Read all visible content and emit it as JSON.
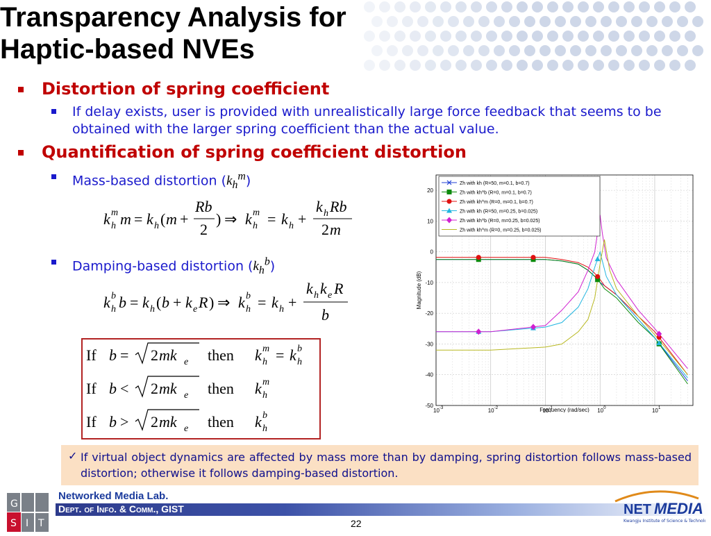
{
  "slide": {
    "title_line1": "Transparency Analysis for",
    "title_line2": "Haptic-based NVEs",
    "bullet1": "Distortion of spring coefficient",
    "bullet1_sub": "If delay exists, user is provided with unrealistically large force feedback that seems to be obtained with the larger spring coefficient than the actual value.",
    "bullet2": "Quantification of spring coefficient distortion",
    "mass_label": "Mass-based distortion (",
    "damping_label": "Damping-based distortion (",
    "note": "If virtual object dynamics are affected by mass more than by damping, spring distortion follows mass-based distortion; otherwise it follows damping-based distortion.",
    "check_symbol": "✓"
  },
  "formulas": {
    "if": "If",
    "then": "then"
  },
  "footer": {
    "lab": "Networked Media Lab.",
    "dept": "Dept. of Info. & Comm., GIST",
    "page_number": "22",
    "logo_gist": "GIST",
    "logo_netmedia": "NETMEDIA",
    "logo_netmedia_sub": "Kwangju Institute of Science & Technology"
  },
  "colors": {
    "title": "#000000",
    "bullet_level1": "#c00000",
    "bullet_level2": "#1a1acc",
    "note_bg": "#fbe0c4",
    "footer_bar": "#2d3b8c"
  },
  "chart_data": {
    "type": "line",
    "xlabel": "Frequency  (rad/sec)",
    "ylabel": "Magnitude (dB)",
    "x_scale": "log",
    "xlim": [
      0.001,
      50
    ],
    "ylim": [
      -50,
      25
    ],
    "x_ticks": [
      "10",
      "10",
      "10",
      "10",
      "10"
    ],
    "x_tick_exponents": [
      "-3",
      "-2",
      "-1",
      "0",
      "1"
    ],
    "y_ticks": [
      "20",
      "10",
      "0",
      "-10",
      "-20",
      "-30",
      "-40",
      "-50"
    ],
    "y_tick_values": [
      20,
      10,
      0,
      -10,
      -20,
      -30,
      -40,
      -50
    ],
    "grid": true,
    "legend_position": "top",
    "series": [
      {
        "name": "Zh with kh (R=50, m=0.1, b=0.7)",
        "color": "#1f3fd6",
        "marker": "x",
        "x": [
          0.001,
          0.006,
          0.01,
          0.1,
          0.2,
          0.4,
          0.6,
          0.8,
          1.0,
          1.2,
          2,
          5,
          10,
          40
        ],
        "y": [
          -2.5,
          -2.5,
          -2.5,
          -2.5,
          -3,
          -4,
          -6,
          -8,
          -10,
          -11,
          -14,
          -22,
          -28,
          -42
        ]
      },
      {
        "name": "Zh with kh^b (R=0, m=0.1, b=0.7)",
        "color": "#0c8a0c",
        "marker": "square",
        "x": [
          0.001,
          0.006,
          0.01,
          0.1,
          0.2,
          0.4,
          0.6,
          0.8,
          1.0,
          1.2,
          2,
          5,
          10,
          40
        ],
        "y": [
          -2.5,
          -2.5,
          -2.5,
          -2.5,
          -3,
          -4,
          -6,
          -8,
          -10,
          -12,
          -15,
          -23,
          -28,
          -43
        ]
      },
      {
        "name": "Zh with kh^m (R=0, m=0.1, b=0.7)",
        "color": "#e01010",
        "marker": "circle",
        "x": [
          0.001,
          0.006,
          0.01,
          0.1,
          0.2,
          0.4,
          0.6,
          0.8,
          1.0,
          1.2,
          2,
          5,
          10,
          40
        ],
        "y": [
          -1.8,
          -1.8,
          -1.8,
          -1.8,
          -2.5,
          -3.5,
          -5,
          -7,
          -9,
          -11,
          -14,
          -21,
          -26,
          -40
        ]
      },
      {
        "name": "Zh with kh (R=50, m=0.25, b=0.025)",
        "color": "#20b5e0",
        "marker": "triangle",
        "x": [
          0.001,
          0.01,
          0.1,
          0.2,
          0.4,
          0.6,
          0.8,
          1.0,
          1.1,
          1.3,
          2,
          5,
          10,
          40
        ],
        "y": [
          -26,
          -26,
          -24.5,
          -23,
          -18,
          -12,
          -5,
          0,
          -3,
          -8,
          -14,
          -22,
          -28,
          -41
        ]
      },
      {
        "name": "Zh with kh^b (R=0, m=0.25, b=0.025)",
        "color": "#d020d0",
        "marker": "diamond",
        "x": [
          0.001,
          0.01,
          0.1,
          0.2,
          0.4,
          0.6,
          0.8,
          1.0,
          1.1,
          1.3,
          2,
          5,
          10,
          40
        ],
        "y": [
          -26,
          -26,
          -24,
          -19,
          -13,
          -6,
          0,
          12,
          6,
          -2,
          -9,
          -19,
          -25,
          -38
        ]
      },
      {
        "name": "Zh with kh^m (R=0, m=0.25, b=0.025)",
        "color": "#b8b820",
        "marker": "none",
        "x": [
          0.001,
          0.01,
          0.1,
          0.2,
          0.4,
          0.6,
          0.8,
          1.0,
          1.2,
          1.5,
          2,
          5,
          10,
          40
        ],
        "y": [
          -32,
          -32,
          -31,
          -30,
          -26,
          -22,
          -15,
          -4,
          4,
          -6,
          -12,
          -21,
          -27,
          -40
        ]
      }
    ]
  }
}
